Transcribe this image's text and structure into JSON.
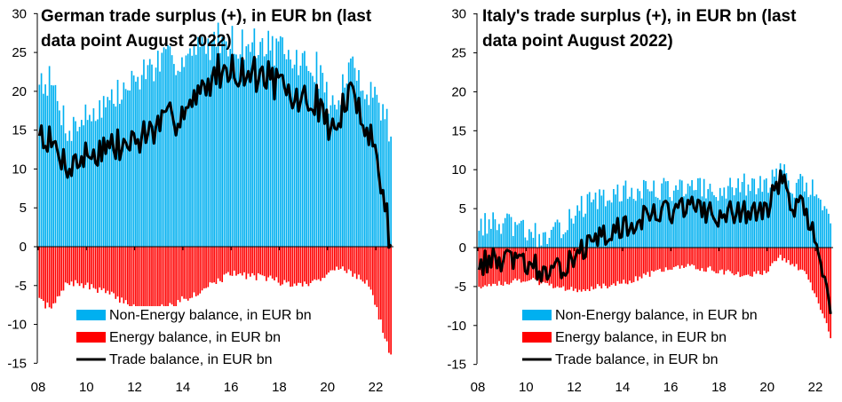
{
  "chart_data": [
    {
      "type": "bar",
      "id": "germany",
      "title_lines": [
        "German trade surplus (+), in EUR bn (last",
        "data point August 2022)"
      ],
      "xlabel": "",
      "ylabel": "",
      "ylim": [
        -15,
        30
      ],
      "yticks": [
        "30",
        "25",
        "20",
        "15",
        "10",
        "5",
        "0",
        "-5",
        "-10",
        "-15"
      ],
      "ytick_values": [
        30,
        25,
        20,
        15,
        10,
        5,
        0,
        -5,
        -10,
        -15
      ],
      "xticks": [
        "08",
        "10",
        "12",
        "14",
        "16",
        "18",
        "20",
        "22"
      ],
      "xtick_years": [
        2008,
        2010,
        2012,
        2014,
        2016,
        2018,
        2020,
        2022
      ],
      "x_start": "2008-01",
      "x_end": "2022-08",
      "legend": [
        "Non-Energy balance, in EUR bn",
        "Energy balance, in EUR bn",
        "Trade balance, in EUR bn"
      ],
      "legend_position": "bottom-center",
      "colors": {
        "non_energy": "#00b0f0",
        "energy": "#ff0000",
        "trade": "#000000"
      },
      "series_shape": {
        "energy_anchor": [
          [
            2008.0,
            -7
          ],
          [
            2008.5,
            -8
          ],
          [
            2009.2,
            -4.5
          ],
          [
            2010.5,
            -5.5
          ],
          [
            2011.5,
            -7
          ],
          [
            2012.5,
            -8.5
          ],
          [
            2013.5,
            -7.5
          ],
          [
            2014.5,
            -6
          ],
          [
            2015.0,
            -5
          ],
          [
            2016.0,
            -3.5
          ],
          [
            2017.5,
            -4
          ],
          [
            2018.5,
            -5
          ],
          [
            2019.5,
            -4.5
          ],
          [
            2020.3,
            -2.5
          ],
          [
            2021.0,
            -3.5
          ],
          [
            2021.7,
            -5
          ],
          [
            2022.0,
            -8
          ],
          [
            2022.6,
            -14.5
          ]
        ],
        "non_energy_anchor": [
          [
            2008.0,
            22
          ],
          [
            2008.5,
            21
          ],
          [
            2009.2,
            15
          ],
          [
            2010.5,
            18
          ],
          [
            2011.5,
            20
          ],
          [
            2012.5,
            23
          ],
          [
            2013.5,
            24
          ],
          [
            2014.5,
            25
          ],
          [
            2015.5,
            27
          ],
          [
            2016.5,
            26
          ],
          [
            2017.5,
            26
          ],
          [
            2018.5,
            24
          ],
          [
            2019.5,
            23
          ],
          [
            2020.3,
            17
          ],
          [
            2020.8,
            23
          ],
          [
            2021.5,
            21
          ],
          [
            2022.0,
            19
          ],
          [
            2022.6,
            15
          ]
        ],
        "noise_non_energy": 2.2,
        "noise_energy": 0.5,
        "seed": 7
      }
    },
    {
      "type": "bar",
      "id": "italy",
      "title_lines": [
        "Italy's trade surplus (+), in EUR bn (last",
        "data point August 2022)"
      ],
      "xlabel": "",
      "ylabel": "",
      "ylim": [
        -15,
        30
      ],
      "yticks": [
        "30",
        "25",
        "20",
        "15",
        "10",
        "5",
        "0",
        "-5",
        "-10",
        "-15"
      ],
      "ytick_values": [
        30,
        25,
        20,
        15,
        10,
        5,
        0,
        -5,
        -10,
        -15
      ],
      "xticks": [
        "08",
        "10",
        "12",
        "14",
        "16",
        "18",
        "20",
        "22"
      ],
      "xtick_years": [
        2008,
        2010,
        2012,
        2014,
        2016,
        2018,
        2020,
        2022
      ],
      "x_start": "2008-01",
      "x_end": "2022-08",
      "legend": [
        "Non-Energy balance, in EUR bn",
        "Energy balance, in EUR bn",
        "Trade balance, in EUR bn"
      ],
      "legend_position": "bottom-center",
      "colors": {
        "non_energy": "#00b0f0",
        "energy": "#ff0000",
        "trade": "#000000"
      },
      "series_shape": {
        "energy_anchor": [
          [
            2008.0,
            -5
          ],
          [
            2009.0,
            -4.5
          ],
          [
            2010.0,
            -4
          ],
          [
            2011.0,
            -5
          ],
          [
            2012.0,
            -5.5
          ],
          [
            2013.0,
            -5
          ],
          [
            2014.0,
            -4.5
          ],
          [
            2015.0,
            -3.5
          ],
          [
            2016.0,
            -2.5
          ],
          [
            2017.0,
            -2.5
          ],
          [
            2018.0,
            -3
          ],
          [
            2019.0,
            -3.5
          ],
          [
            2020.0,
            -3
          ],
          [
            2020.4,
            -1.2
          ],
          [
            2021.0,
            -2
          ],
          [
            2021.6,
            -3.5
          ],
          [
            2022.0,
            -6.5
          ],
          [
            2022.6,
            -11.5
          ]
        ],
        "non_energy_anchor": [
          [
            2008.0,
            3
          ],
          [
            2009.0,
            3
          ],
          [
            2010.0,
            2
          ],
          [
            2011.0,
            1
          ],
          [
            2012.0,
            5
          ],
          [
            2013.0,
            6
          ],
          [
            2014.0,
            7
          ],
          [
            2015.0,
            7.5
          ],
          [
            2016.0,
            7.5
          ],
          [
            2017.0,
            7.5
          ],
          [
            2018.0,
            7
          ],
          [
            2019.0,
            8
          ],
          [
            2020.0,
            8
          ],
          [
            2020.5,
            10
          ],
          [
            2021.0,
            8
          ],
          [
            2021.5,
            8
          ],
          [
            2022.0,
            7
          ],
          [
            2022.6,
            4
          ]
        ],
        "noise_non_energy": 1.6,
        "noise_energy": 0.4,
        "seed": 13
      }
    }
  ]
}
